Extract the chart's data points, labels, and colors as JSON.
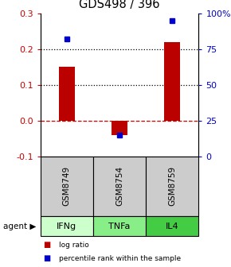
{
  "title": "GDS498 / 396",
  "samples": [
    "GSM8749",
    "GSM8754",
    "GSM8759"
  ],
  "agents": [
    "IFNg",
    "TNFa",
    "IL4"
  ],
  "log_ratios": [
    0.15,
    -0.04,
    0.22
  ],
  "percentile_ranks": [
    82,
    15,
    95
  ],
  "left_ylim": [
    -0.1,
    0.3
  ],
  "right_ylim": [
    0,
    100
  ],
  "left_yticks": [
    -0.1,
    0.0,
    0.1,
    0.2,
    0.3
  ],
  "right_yticks": [
    0,
    25,
    50,
    75,
    100
  ],
  "right_yticklabels": [
    "0",
    "25",
    "50",
    "75",
    "100%"
  ],
  "bar_color": "#bb0000",
  "dot_color": "#0000cc",
  "zero_line_color": "#cc0000",
  "agent_colors": [
    "#ccffcc",
    "#88ee88",
    "#44cc44"
  ],
  "sample_bg_color": "#cccccc",
  "left_tick_color": "#cc0000",
  "right_tick_color": "#0000cc",
  "bar_width": 0.3,
  "figsize": [
    2.9,
    3.36
  ],
  "dpi": 100
}
